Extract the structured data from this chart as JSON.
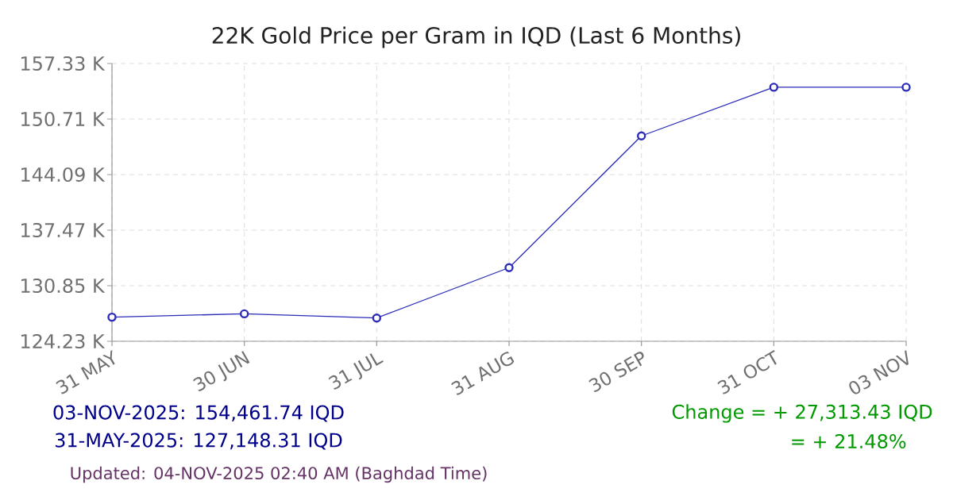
{
  "chart_data": {
    "type": "line",
    "title": "22K Gold Price per Gram in IQD (Last 6 Months)",
    "categories": [
      "31 MAY",
      "30 JUN",
      "31 JUL",
      "31 AUG",
      "30 SEP",
      "31 OCT",
      "03 NOV"
    ],
    "series": [
      {
        "color": "#2c2cb8",
        "values": [
          127.1,
          127.5,
          127.0,
          133.0,
          148.7,
          154.5,
          154.5
        ]
      }
    ],
    "ylim": [
      124.23,
      157.33
    ],
    "yticks": [
      {
        "value": 124.23,
        "label": "124.23 K"
      },
      {
        "value": 130.85,
        "label": "130.85 K"
      },
      {
        "value": 137.47,
        "label": "137.47 K"
      },
      {
        "value": 144.09,
        "label": "144.09 K"
      },
      {
        "value": 150.71,
        "label": "150.71 K"
      },
      {
        "value": 157.33,
        "label": "157.33 K"
      }
    ],
    "grid": true,
    "marker": "circle",
    "line_style": "solid",
    "annotations": [
      "03-NOV-2025: 154,461.74 IQD",
      "31-MAY-2025: 127,148.31 IQD",
      "Change = + 27,313.43 IQD",
      "= + 21.48%",
      "Updated: 04-NOV-2025 02:40 AM (Baghdad Time)"
    ]
  }
}
